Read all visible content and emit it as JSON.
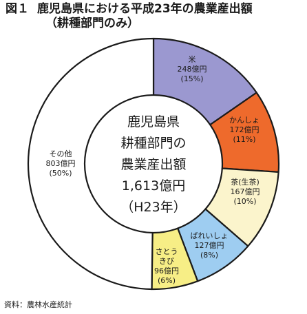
{
  "figure": {
    "number": "図１",
    "title_line1": "鹿児島県における平成23年の農業産出額",
    "title_line2": "（耕種部門のみ）",
    "source": "資料：農林水産統計"
  },
  "center": {
    "lines": [
      "鹿児島県",
      "耕種部門の",
      "農業産出額",
      "1,613億円",
      "（H23年）"
    ]
  },
  "chart_data": {
    "type": "pie",
    "variant": "donut",
    "total": 1613,
    "unit": "億円",
    "slices": [
      {
        "name": "米",
        "label_lines": [
          "米",
          "248億円",
          "(15%)"
        ],
        "value": 248,
        "percent": 15,
        "color": "#9b98d0"
      },
      {
        "name": "かんしょ",
        "label_lines": [
          "かんしょ",
          "172億円",
          "(11%)"
        ],
        "value": 172,
        "percent": 11,
        "color": "#ee6a2c"
      },
      {
        "name": "茶(生茶)",
        "label_lines": [
          "茶(生茶)",
          "167億円",
          "(10%)"
        ],
        "value": 167,
        "percent": 10,
        "color": "#fbf4cc"
      },
      {
        "name": "ばれいしょ",
        "label_lines": [
          "ばれいしょ",
          "127億円",
          "(8%)"
        ],
        "value": 127,
        "percent": 8,
        "color": "#9ecdf1"
      },
      {
        "name": "さとうきび",
        "label_lines": [
          "さとう",
          "きび",
          "96億円",
          "(6%)"
        ],
        "value": 96,
        "percent": 6,
        "color": "#f7ee86"
      },
      {
        "name": "その他",
        "label_lines": [
          "その他",
          "803億円",
          "(50%)"
        ],
        "value": 803,
        "percent": 50,
        "color": "#ffffff"
      }
    ]
  }
}
